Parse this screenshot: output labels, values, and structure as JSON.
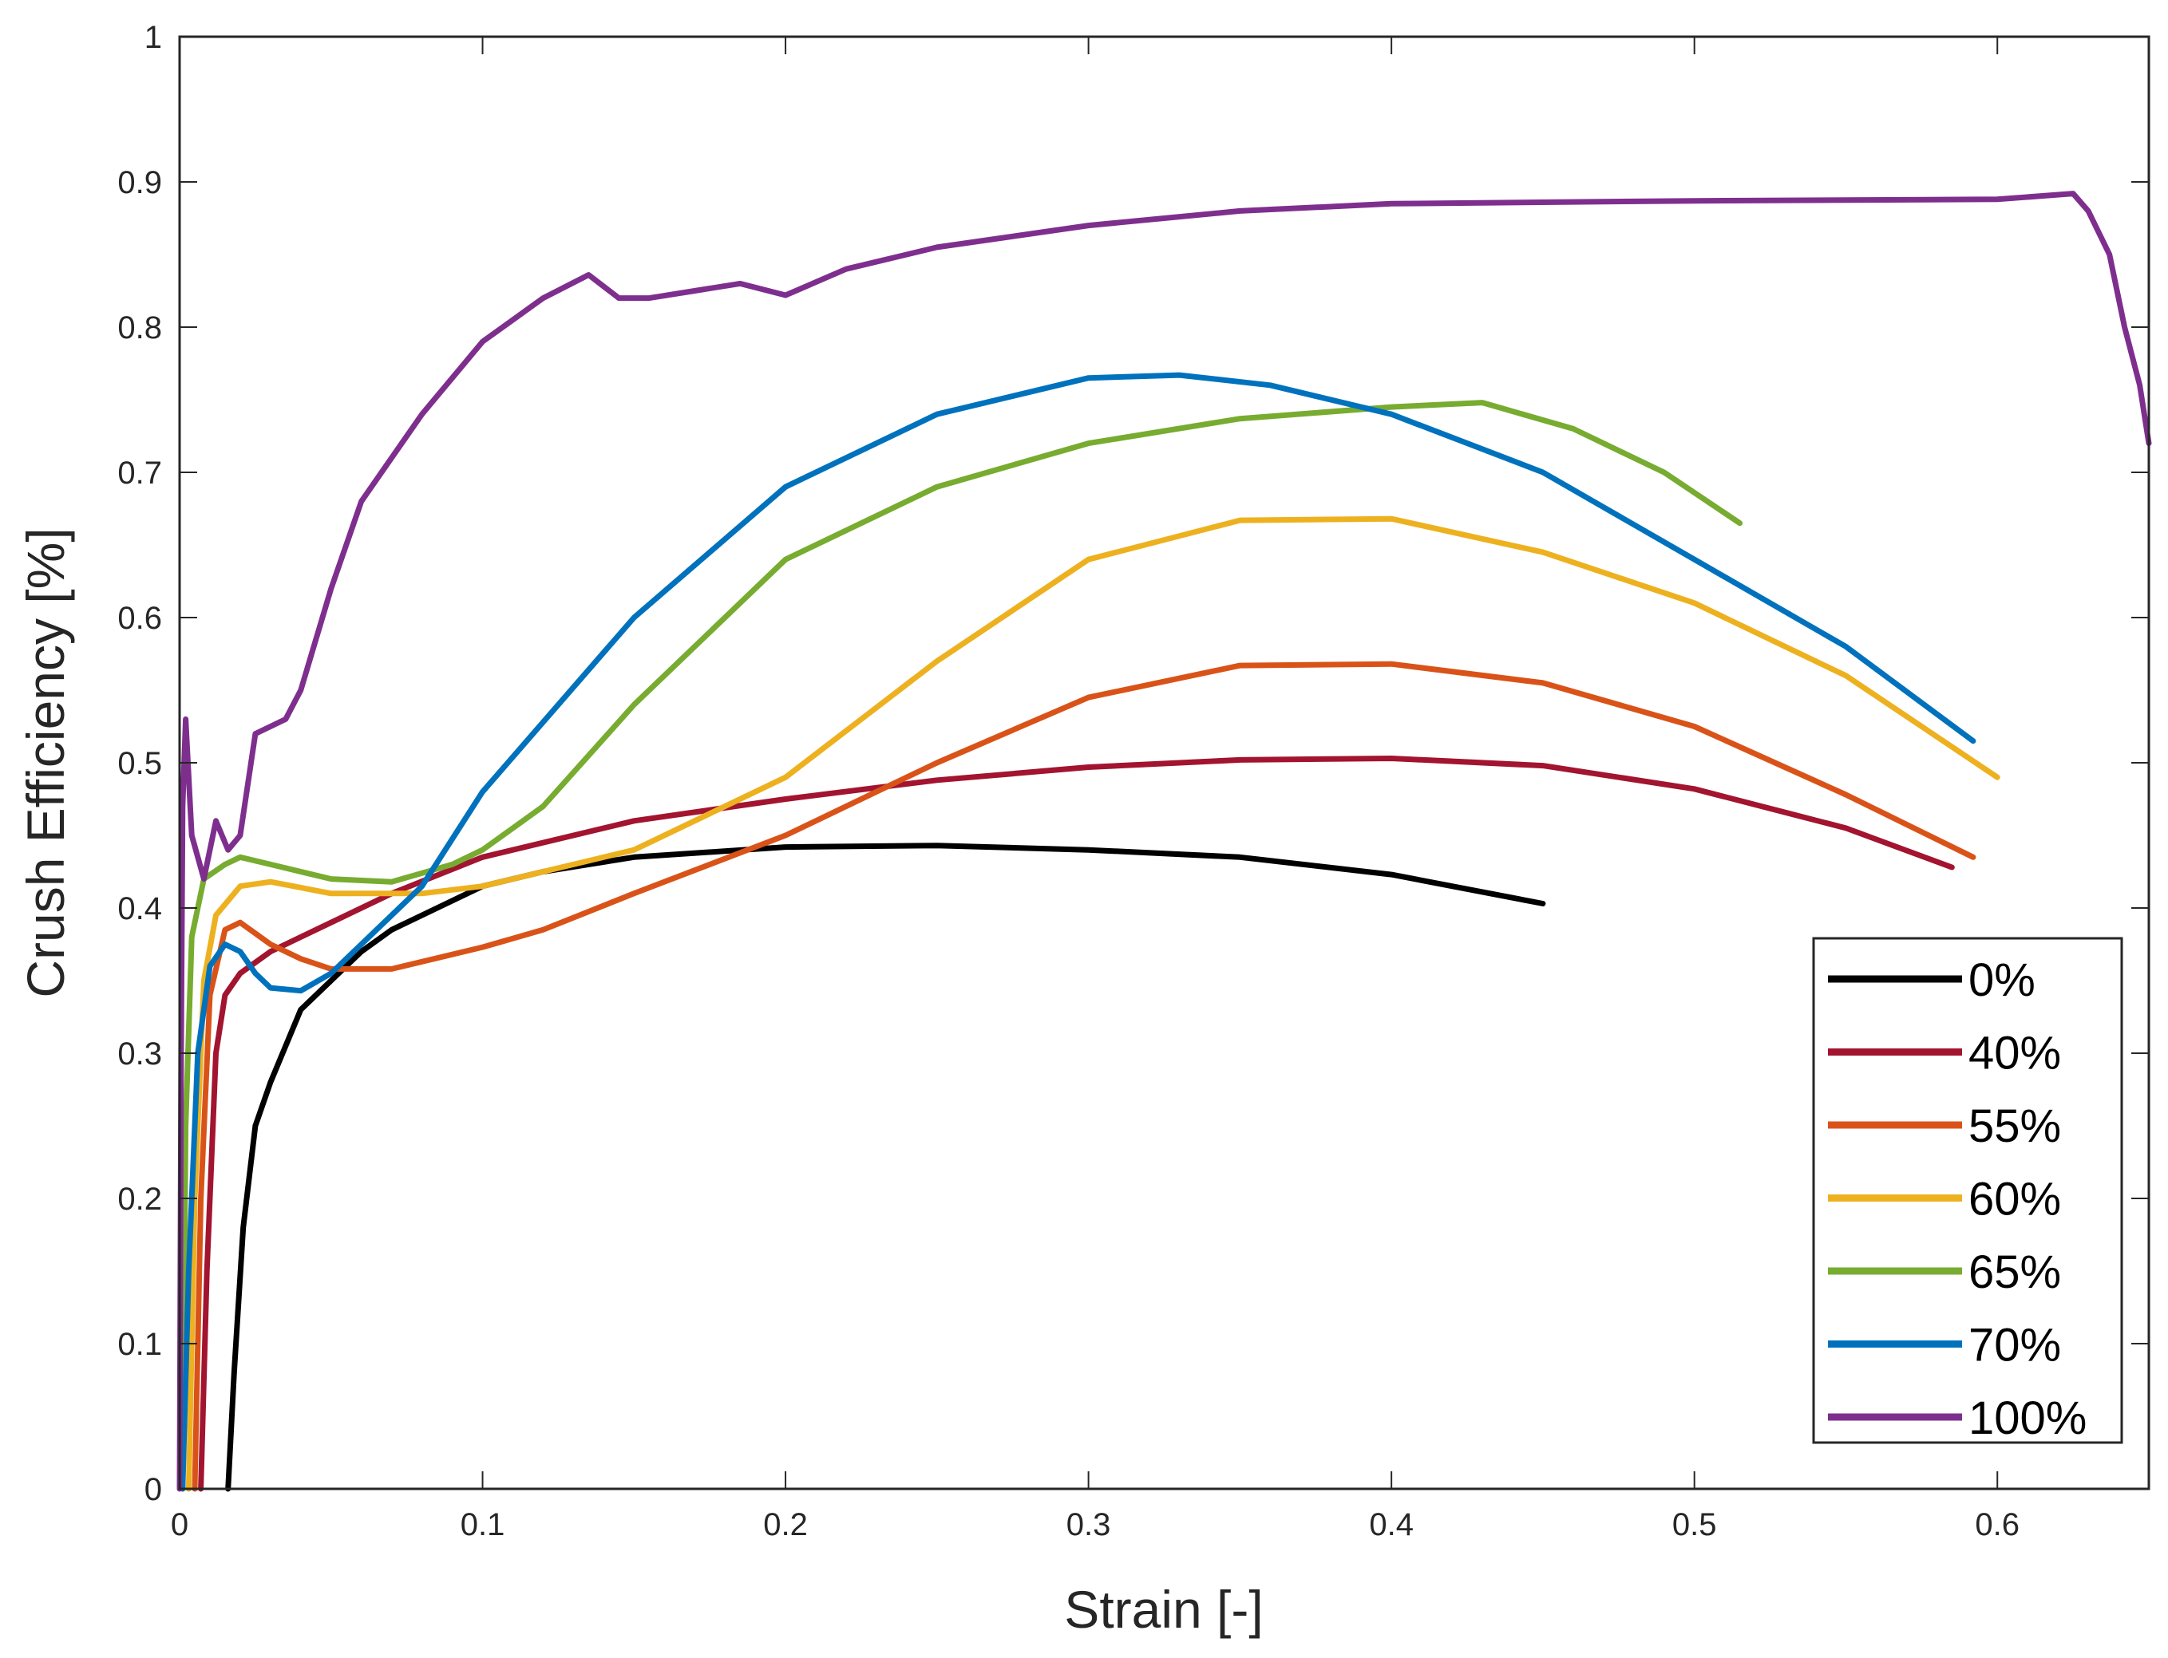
{
  "chart_data": {
    "type": "line",
    "title": "",
    "xlabel": "Strain [-]",
    "ylabel": "Crush Efficiency [%]",
    "xlim": [
      0,
      0.65
    ],
    "ylim": [
      0,
      1
    ],
    "xticks": [
      0,
      0.1,
      0.2,
      0.3,
      0.4,
      0.5,
      0.6
    ],
    "xtick_labels": [
      "0",
      "0.1",
      "0.2",
      "0.3",
      "0.4",
      "0.5",
      "0.6"
    ],
    "yticks": [
      0,
      0.1,
      0.2,
      0.3,
      0.4,
      0.5,
      0.6,
      0.7,
      0.8,
      0.9,
      1
    ],
    "ytick_labels": [
      "0",
      "0.1",
      "0.2",
      "0.3",
      "0.4",
      "0.5",
      "0.6",
      "0.7",
      "0.8",
      "0.9",
      "1"
    ],
    "grid": false,
    "legend_position": "bottom-right",
    "series": [
      {
        "name": "0%",
        "color": "#000000",
        "points": [
          [
            0.016,
            0
          ],
          [
            0.018,
            0.08
          ],
          [
            0.021,
            0.18
          ],
          [
            0.025,
            0.25
          ],
          [
            0.03,
            0.28
          ],
          [
            0.04,
            0.33
          ],
          [
            0.05,
            0.35
          ],
          [
            0.06,
            0.37
          ],
          [
            0.07,
            0.385
          ],
          [
            0.08,
            0.395
          ],
          [
            0.1,
            0.415
          ],
          [
            0.12,
            0.425
          ],
          [
            0.15,
            0.435
          ],
          [
            0.2,
            0.442
          ],
          [
            0.25,
            0.443
          ],
          [
            0.3,
            0.44
          ],
          [
            0.35,
            0.435
          ],
          [
            0.4,
            0.423
          ],
          [
            0.45,
            0.403
          ]
        ]
      },
      {
        "name": "40%",
        "color": "#a2142f",
        "points": [
          [
            0.007,
            0
          ],
          [
            0.009,
            0.15
          ],
          [
            0.012,
            0.3
          ],
          [
            0.015,
            0.34
          ],
          [
            0.02,
            0.355
          ],
          [
            0.03,
            0.37
          ],
          [
            0.05,
            0.39
          ],
          [
            0.07,
            0.41
          ],
          [
            0.1,
            0.435
          ],
          [
            0.15,
            0.46
          ],
          [
            0.2,
            0.475
          ],
          [
            0.25,
            0.488
          ],
          [
            0.3,
            0.497
          ],
          [
            0.35,
            0.502
          ],
          [
            0.4,
            0.503
          ],
          [
            0.45,
            0.498
          ],
          [
            0.5,
            0.482
          ],
          [
            0.55,
            0.455
          ],
          [
            0.585,
            0.428
          ]
        ]
      },
      {
        "name": "55%",
        "color": "#d95319",
        "points": [
          [
            0.005,
            0
          ],
          [
            0.007,
            0.2
          ],
          [
            0.01,
            0.34
          ],
          [
            0.015,
            0.385
          ],
          [
            0.02,
            0.39
          ],
          [
            0.03,
            0.375
          ],
          [
            0.04,
            0.365
          ],
          [
            0.05,
            0.358
          ],
          [
            0.07,
            0.358
          ],
          [
            0.1,
            0.373
          ],
          [
            0.12,
            0.385
          ],
          [
            0.15,
            0.41
          ],
          [
            0.2,
            0.45
          ],
          [
            0.25,
            0.5
          ],
          [
            0.3,
            0.545
          ],
          [
            0.35,
            0.567
          ],
          [
            0.4,
            0.568
          ],
          [
            0.45,
            0.555
          ],
          [
            0.5,
            0.525
          ],
          [
            0.55,
            0.478
          ],
          [
            0.592,
            0.435
          ]
        ]
      },
      {
        "name": "60%",
        "color": "#edb120",
        "points": [
          [
            0.003,
            0
          ],
          [
            0.005,
            0.2
          ],
          [
            0.008,
            0.35
          ],
          [
            0.012,
            0.395
          ],
          [
            0.02,
            0.415
          ],
          [
            0.03,
            0.418
          ],
          [
            0.05,
            0.41
          ],
          [
            0.08,
            0.41
          ],
          [
            0.1,
            0.415
          ],
          [
            0.15,
            0.44
          ],
          [
            0.2,
            0.49
          ],
          [
            0.25,
            0.57
          ],
          [
            0.3,
            0.64
          ],
          [
            0.35,
            0.667
          ],
          [
            0.4,
            0.668
          ],
          [
            0.45,
            0.645
          ],
          [
            0.5,
            0.61
          ],
          [
            0.55,
            0.56
          ],
          [
            0.6,
            0.49
          ]
        ]
      },
      {
        "name": "65%",
        "color": "#77ac30",
        "points": [
          [
            0.001,
            0
          ],
          [
            0.002,
            0.25
          ],
          [
            0.004,
            0.38
          ],
          [
            0.008,
            0.42
          ],
          [
            0.015,
            0.43
          ],
          [
            0.02,
            0.435
          ],
          [
            0.03,
            0.43
          ],
          [
            0.05,
            0.42
          ],
          [
            0.07,
            0.418
          ],
          [
            0.09,
            0.43
          ],
          [
            0.1,
            0.44
          ],
          [
            0.12,
            0.47
          ],
          [
            0.15,
            0.54
          ],
          [
            0.2,
            0.64
          ],
          [
            0.25,
            0.69
          ],
          [
            0.3,
            0.72
          ],
          [
            0.35,
            0.737
          ],
          [
            0.4,
            0.745
          ],
          [
            0.43,
            0.748
          ],
          [
            0.46,
            0.73
          ],
          [
            0.49,
            0.7
          ],
          [
            0.515,
            0.665
          ]
        ]
      },
      {
        "name": "70%",
        "color": "#0072bd",
        "points": [
          [
            0.001,
            0
          ],
          [
            0.003,
            0.15
          ],
          [
            0.006,
            0.3
          ],
          [
            0.01,
            0.36
          ],
          [
            0.015,
            0.375
          ],
          [
            0.02,
            0.37
          ],
          [
            0.025,
            0.355
          ],
          [
            0.03,
            0.345
          ],
          [
            0.04,
            0.343
          ],
          [
            0.05,
            0.355
          ],
          [
            0.06,
            0.375
          ],
          [
            0.08,
            0.415
          ],
          [
            0.1,
            0.48
          ],
          [
            0.15,
            0.6
          ],
          [
            0.2,
            0.69
          ],
          [
            0.25,
            0.74
          ],
          [
            0.3,
            0.765
          ],
          [
            0.33,
            0.767
          ],
          [
            0.36,
            0.76
          ],
          [
            0.4,
            0.74
          ],
          [
            0.45,
            0.7
          ],
          [
            0.5,
            0.64
          ],
          [
            0.55,
            0.58
          ],
          [
            0.592,
            0.515
          ]
        ]
      },
      {
        "name": "100%",
        "color": "#7e2f8e",
        "points": [
          [
            0,
            0
          ],
          [
            0.0005,
            0.3
          ],
          [
            0.001,
            0.47
          ],
          [
            0.002,
            0.53
          ],
          [
            0.004,
            0.45
          ],
          [
            0.008,
            0.42
          ],
          [
            0.012,
            0.46
          ],
          [
            0.016,
            0.44
          ],
          [
            0.02,
            0.45
          ],
          [
            0.025,
            0.52
          ],
          [
            0.035,
            0.53
          ],
          [
            0.04,
            0.55
          ],
          [
            0.05,
            0.62
          ],
          [
            0.06,
            0.68
          ],
          [
            0.08,
            0.74
          ],
          [
            0.1,
            0.79
          ],
          [
            0.12,
            0.82
          ],
          [
            0.135,
            0.836
          ],
          [
            0.145,
            0.82
          ],
          [
            0.155,
            0.82
          ],
          [
            0.17,
            0.825
          ],
          [
            0.185,
            0.83
          ],
          [
            0.2,
            0.822
          ],
          [
            0.22,
            0.84
          ],
          [
            0.25,
            0.855
          ],
          [
            0.3,
            0.87
          ],
          [
            0.35,
            0.88
          ],
          [
            0.4,
            0.885
          ],
          [
            0.5,
            0.887
          ],
          [
            0.6,
            0.888
          ],
          [
            0.625,
            0.892
          ],
          [
            0.63,
            0.88
          ],
          [
            0.637,
            0.85
          ],
          [
            0.642,
            0.8
          ],
          [
            0.647,
            0.76
          ],
          [
            0.65,
            0.72
          ]
        ]
      }
    ]
  }
}
